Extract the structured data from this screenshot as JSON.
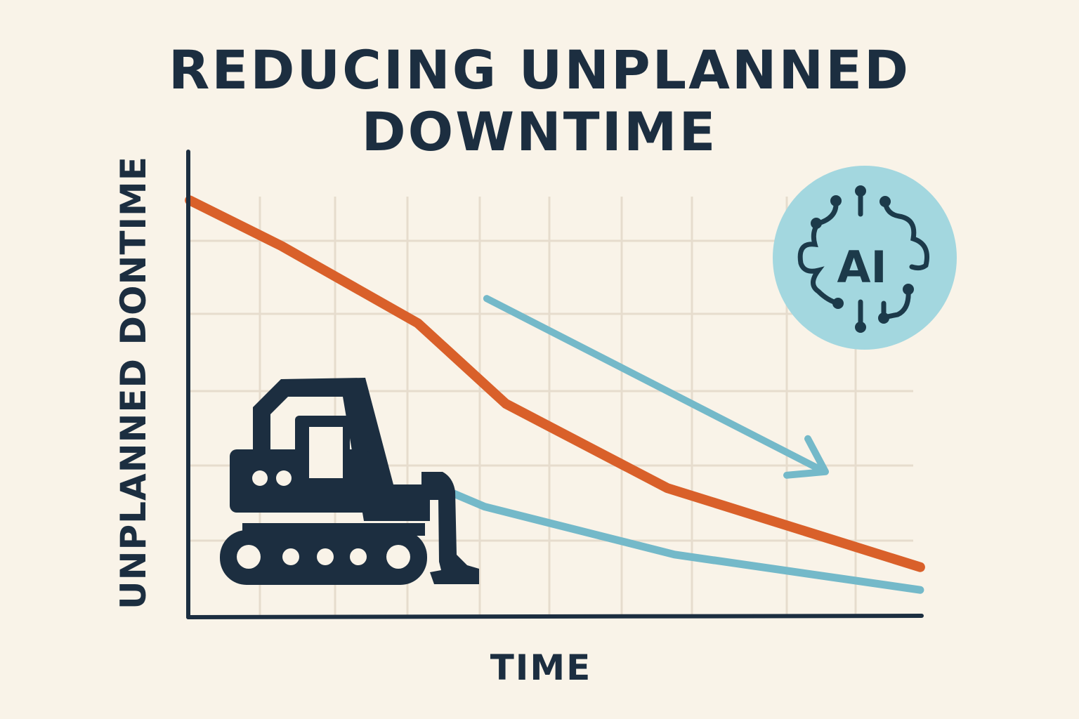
{
  "chart_data": {
    "type": "line",
    "title": "REDUCING UNPLANNED DOWNTIME",
    "title_lines": [
      "REDUCING UNPLANNED",
      "DOWNTIME"
    ],
    "xlabel": "TIME",
    "ylabel": "UNPLANNED DONTIME",
    "xlim": [
      0,
      10
    ],
    "ylim": [
      0,
      10
    ],
    "tick_labels": false,
    "grid": true,
    "legend": "none",
    "series": [
      {
        "color": "#d9602a",
        "x": [
          0.02,
          1.27,
          3.13,
          4.33,
          6.53,
          9.98
        ],
        "y": [
          8.94,
          7.96,
          6.3,
          4.57,
          2.76,
          1.06
        ]
      },
      {
        "color": "#74b9c9",
        "x": [
          3.56,
          4.04,
          6.63,
          9.98
        ],
        "y": [
          2.68,
          2.36,
          1.33,
          0.57
        ]
      }
    ],
    "annotations": [
      {
        "type": "arrow",
        "color": "#74b9c9",
        "from": [
          4.07,
          6.83
        ],
        "to": [
          8.64,
          3.14
        ]
      },
      {
        "type": "icon",
        "name": "ai-brain-icon",
        "text": "AI",
        "background": "#a3d7df"
      },
      {
        "type": "icon",
        "name": "excavator-icon"
      }
    ]
  },
  "colors": {
    "background": "#f9f3e8",
    "ink": "#1c2e40",
    "grid": "#e6dccd"
  }
}
